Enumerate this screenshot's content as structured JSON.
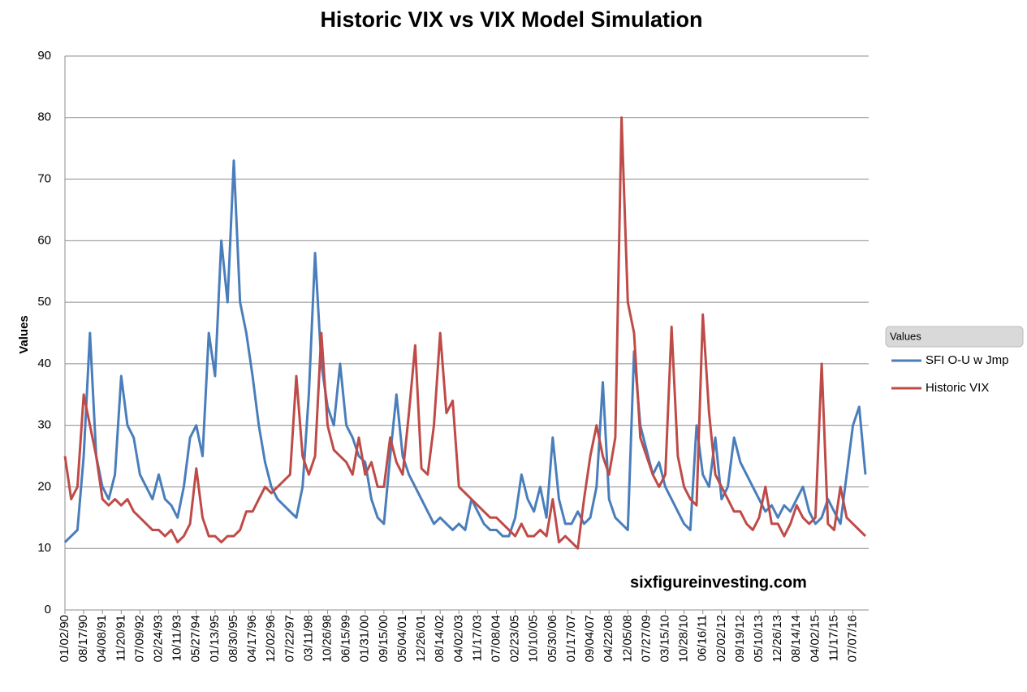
{
  "chart_data": {
    "type": "line",
    "title": "Historic VIX vs VIX Model Simulation",
    "y_label": "Values",
    "legend_title": "Values",
    "legend_position": "right",
    "annotation": "sixfigureinvesting.com",
    "grid": true,
    "ylim": [
      0,
      90
    ],
    "yticks": [
      0,
      10,
      20,
      30,
      40,
      50,
      60,
      70,
      80,
      90
    ],
    "categories": [
      "01/02/90",
      null,
      null,
      "08/17/90",
      null,
      null,
      "04/08/91",
      null,
      null,
      "11/20/91",
      null,
      null,
      "07/09/92",
      null,
      null,
      "02/24/93",
      null,
      null,
      "10/11/93",
      null,
      null,
      "05/27/94",
      null,
      null,
      "01/13/95",
      null,
      null,
      "08/30/95",
      null,
      null,
      "04/17/96",
      null,
      null,
      "12/02/96",
      null,
      null,
      "07/22/97",
      null,
      null,
      "03/11/98",
      null,
      null,
      "10/26/98",
      null,
      null,
      "06/15/99",
      null,
      null,
      "01/31/00",
      null,
      null,
      "09/15/00",
      null,
      null,
      "05/04/01",
      null,
      null,
      "12/26/01",
      null,
      null,
      "08/14/02",
      null,
      null,
      "04/02/03",
      null,
      null,
      "11/17/03",
      null,
      null,
      "07/08/04",
      null,
      null,
      "02/23/05",
      null,
      null,
      "10/10/05",
      null,
      null,
      "05/30/06",
      null,
      null,
      "01/17/07",
      null,
      null,
      "09/04/07",
      null,
      null,
      "04/22/08",
      null,
      null,
      "12/05/08",
      null,
      null,
      "07/27/09",
      null,
      null,
      "03/15/10",
      null,
      null,
      "10/28/10",
      null,
      null,
      "06/16/11",
      null,
      null,
      "02/02/12",
      null,
      null,
      "09/19/12",
      null,
      null,
      "05/10/13",
      null,
      null,
      "12/26/13",
      null,
      null,
      "08/14/14",
      null,
      null,
      "04/02/15",
      null,
      null,
      "11/17/15",
      null,
      null,
      "07/07/16",
      null,
      null
    ],
    "series": [
      {
        "name": "SFI O-U w Jmp",
        "color": "#4a7ebb",
        "values": [
          11,
          12,
          13,
          25,
          45,
          25,
          20,
          18,
          22,
          38,
          30,
          28,
          22,
          20,
          18,
          22,
          18,
          17,
          15,
          20,
          28,
          30,
          25,
          45,
          38,
          60,
          50,
          73,
          50,
          45,
          38,
          30,
          24,
          20,
          18,
          17,
          16,
          15,
          20,
          35,
          58,
          40,
          33,
          30,
          40,
          30,
          28,
          25,
          24,
          18,
          15,
          14,
          25,
          35,
          25,
          22,
          20,
          18,
          16,
          14,
          15,
          14,
          13,
          14,
          13,
          18,
          16,
          14,
          13,
          13,
          12,
          12,
          15,
          22,
          18,
          16,
          20,
          15,
          28,
          18,
          14,
          14,
          16,
          14,
          15,
          20,
          37,
          18,
          15,
          14,
          13,
          42,
          30,
          26,
          22,
          24,
          20,
          18,
          16,
          14,
          13,
          30,
          22,
          20,
          28,
          18,
          20,
          28,
          24,
          22,
          20,
          18,
          16,
          17,
          15,
          17,
          16,
          18,
          20,
          16,
          14,
          15,
          18,
          16,
          14,
          22,
          30,
          33,
          22
        ]
      },
      {
        "name": "Historic VIX",
        "color": "#be4b48",
        "values": [
          25,
          18,
          20,
          35,
          30,
          25,
          18,
          17,
          18,
          17,
          18,
          16,
          15,
          14,
          13,
          13,
          12,
          13,
          11,
          12,
          14,
          23,
          15,
          12,
          12,
          11,
          12,
          12,
          13,
          16,
          16,
          18,
          20,
          19,
          20,
          21,
          22,
          38,
          25,
          22,
          25,
          45,
          30,
          26,
          25,
          24,
          22,
          28,
          22,
          24,
          20,
          20,
          28,
          24,
          22,
          32,
          43,
          23,
          22,
          30,
          45,
          32,
          34,
          20,
          19,
          18,
          17,
          16,
          15,
          15,
          14,
          13,
          12,
          14,
          12,
          12,
          13,
          12,
          18,
          11,
          12,
          11,
          10,
          18,
          25,
          30,
          25,
          22,
          28,
          80,
          50,
          45,
          28,
          25,
          22,
          20,
          22,
          46,
          25,
          20,
          18,
          17,
          48,
          32,
          22,
          20,
          18,
          16,
          16,
          14,
          13,
          15,
          20,
          14,
          14,
          12,
          14,
          17,
          15,
          14,
          15,
          40,
          14,
          13,
          20,
          15,
          14,
          13,
          12
        ]
      }
    ]
  }
}
